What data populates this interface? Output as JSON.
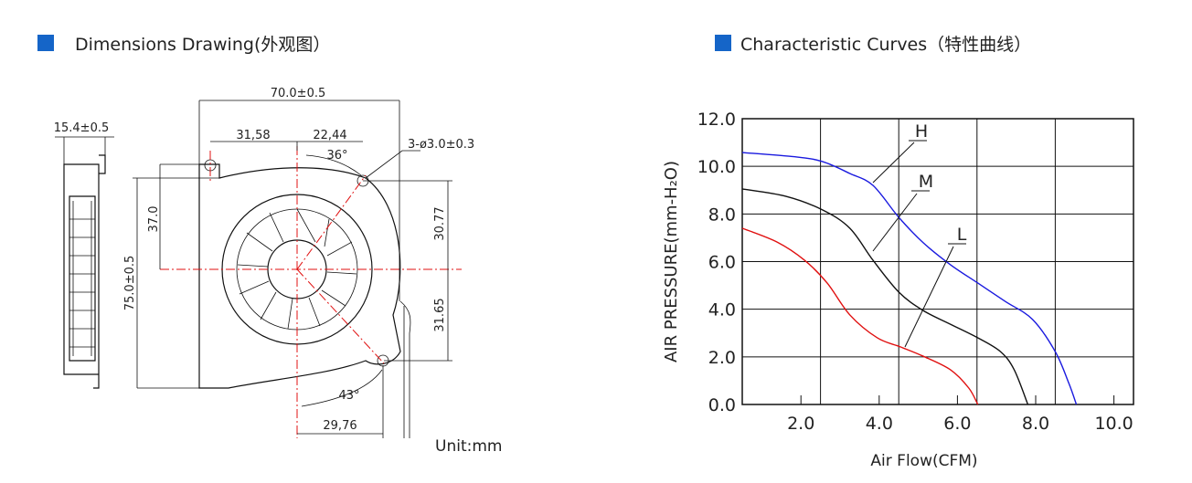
{
  "drawing": {
    "title": "Dimensions Drawing(外观图）",
    "labels": [
      "15.4±0.5",
      "70.0±0.5",
      "31,58",
      "22,44",
      "36°",
      "3-ø3.0±0.3",
      "37.0",
      "30.77",
      "75.0±0.5",
      "31.65",
      "43°",
      "29,76"
    ],
    "unit": "Unit:mm"
  },
  "chart_data": {
    "type": "line",
    "title": "Characteristic Curves（特性曲线）",
    "x_label": "Air Flow(CFM)",
    "y_label": "AIR PRESSURE(mm-H₂O)",
    "xlim": [
      0.5,
      10.5
    ],
    "ylim": [
      0,
      12
    ],
    "xticks": [
      {
        "value": 2,
        "label": "2.0"
      },
      {
        "value": 4,
        "label": "4.0"
      },
      {
        "value": 6,
        "label": "6.0"
      },
      {
        "value": 8,
        "label": "8.0"
      },
      {
        "value": 10,
        "label": "10.0"
      }
    ],
    "xgrid": [
      2.5,
      4.5,
      6.5,
      8.5
    ],
    "yticks": [
      {
        "value": 0,
        "label": "0.0"
      },
      {
        "value": 2,
        "label": "2.0"
      },
      {
        "value": 4,
        "label": "4.0"
      },
      {
        "value": 6,
        "label": "6.0"
      },
      {
        "value": 8,
        "label": "8.0"
      },
      {
        "value": 10,
        "label": "10.0"
      },
      {
        "value": 12,
        "label": "12.0"
      }
    ],
    "grid": true,
    "series": [
      {
        "name": "H",
        "color": "#1a1adf",
        "x": [
          0.5,
          1.85,
          2.55,
          3.25,
          3.84,
          4.5,
          5.12,
          5.82,
          6.52,
          7.22,
          7.92,
          8.5,
          8.85,
          9.04
        ],
        "values": [
          10.58,
          10.4,
          10.2,
          9.7,
          9.2,
          7.86,
          6.8,
          5.87,
          5.1,
          4.33,
          3.57,
          2.22,
          0.88,
          0
        ]
      },
      {
        "name": "M",
        "color": "#111111",
        "x": [
          0.5,
          1.62,
          2.55,
          3.25,
          3.84,
          4.5,
          5.12,
          5.82,
          6.52,
          7.1,
          7.45,
          7.8
        ],
        "values": [
          9.05,
          8.74,
          8.17,
          7.4,
          6.06,
          4.72,
          3.95,
          3.37,
          2.8,
          2.22,
          1.46,
          0
        ]
      },
      {
        "name": "L",
        "color": "#e01010",
        "x": [
          0.5,
          1.39,
          2.09,
          2.67,
          3.25,
          3.95,
          4.54,
          5.12,
          5.82,
          6.29,
          6.52
        ],
        "values": [
          7.4,
          6.82,
          6.06,
          5.1,
          3.76,
          2.8,
          2.42,
          2.03,
          1.46,
          0.69,
          0
        ]
      }
    ]
  }
}
